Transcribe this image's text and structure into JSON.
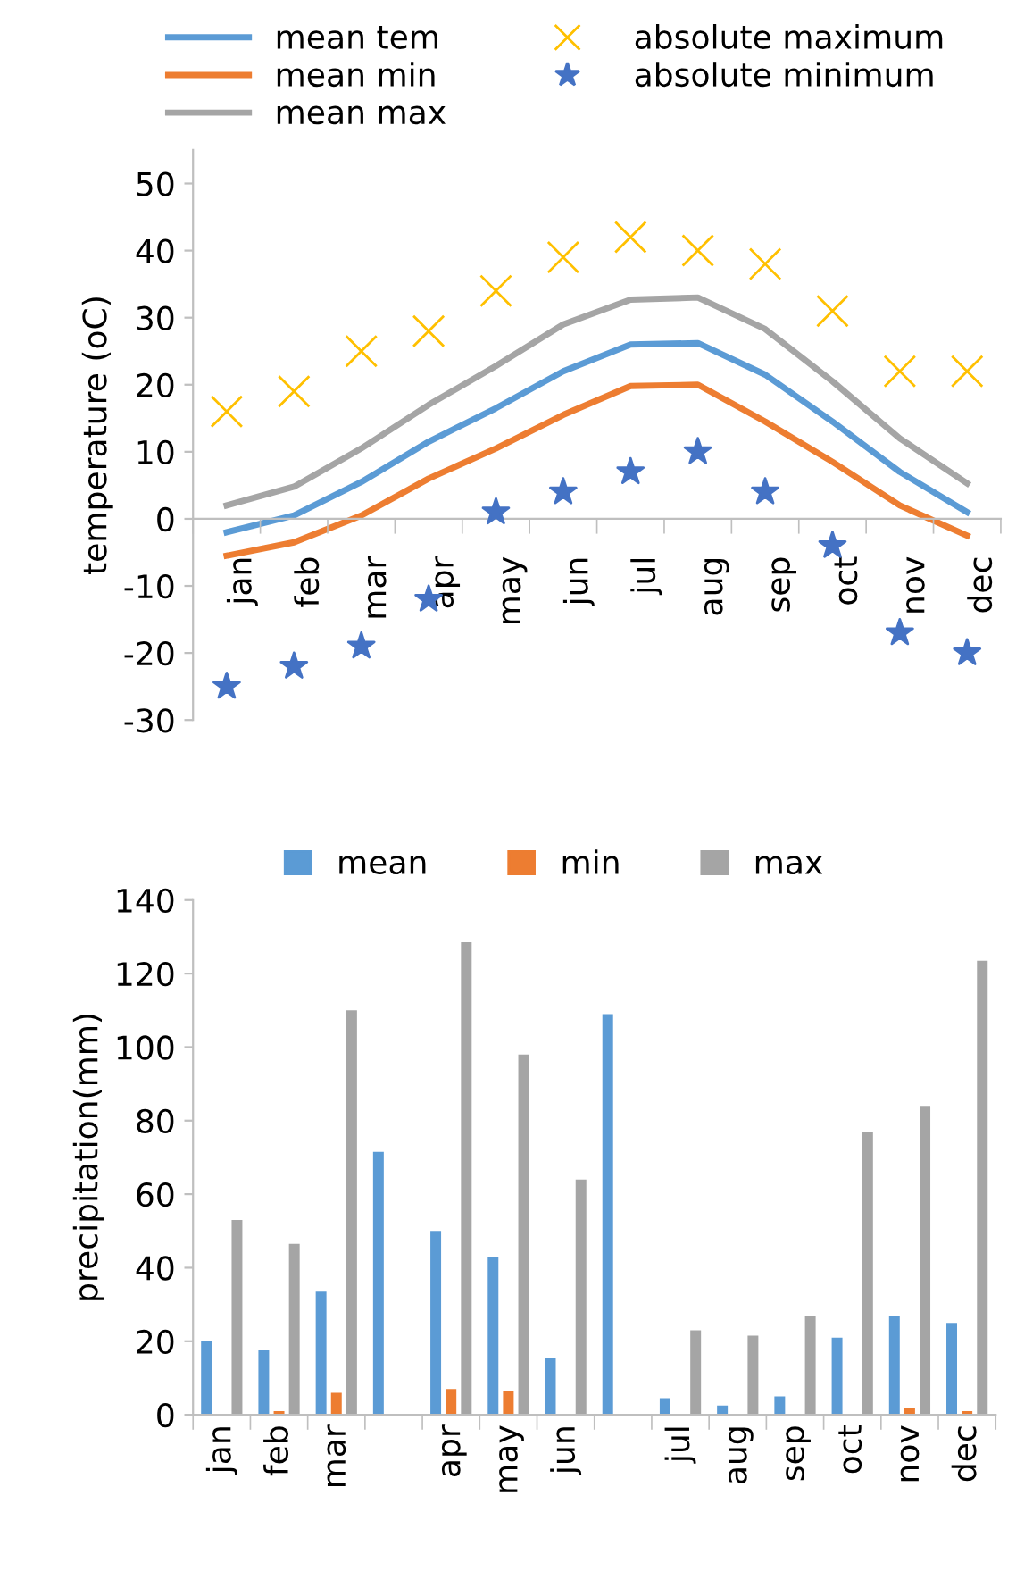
{
  "chart_data": [
    {
      "type": "line",
      "ylabel": "temperature (oC)",
      "categories": [
        "jan",
        "feb",
        "mar",
        "apr",
        "may",
        "jun",
        "jul",
        "aug",
        "sep",
        "oct",
        "nov",
        "dec"
      ],
      "ylim": [
        -30,
        55
      ],
      "yticks": [
        -30,
        -20,
        -10,
        0,
        10,
        20,
        30,
        40,
        50
      ],
      "grid": false,
      "legend": "top",
      "marker": "none",
      "line_style": "solid",
      "series": [
        {
          "name": "mean tem",
          "color": "#5b9bd5",
          "values": [
            -2,
            0.5,
            5.5,
            11.5,
            16.5,
            22,
            26,
            26.2,
            21.5,
            14.5,
            7,
            1
          ]
        },
        {
          "name": "mean min",
          "color": "#ed7d31",
          "values": [
            -5.5,
            -3.5,
            0.5,
            6,
            10.5,
            15.5,
            19.8,
            20,
            14.5,
            8.5,
            2,
            -2.5
          ]
        },
        {
          "name": "mean max",
          "color": "#a5a5a5",
          "values": [
            2,
            4.8,
            10.5,
            17,
            22.8,
            29,
            32.7,
            33,
            28.3,
            20.5,
            12,
            5.3
          ]
        },
        {
          "name": "absolute maximum",
          "type": "scatter",
          "marker": "cross",
          "color": "#ffc000",
          "values": [
            16,
            19,
            25,
            28,
            34,
            39,
            42,
            40,
            38,
            31,
            22,
            22
          ]
        },
        {
          "name": "absolute minimum",
          "type": "scatter",
          "marker": "star",
          "color": "#4472c4",
          "values": [
            -25,
            -22,
            -19,
            -12,
            1,
            4,
            7,
            10,
            4,
            -4,
            -17,
            -20
          ]
        }
      ]
    },
    {
      "type": "bar",
      "ylabel": "precipitation(mm)",
      "categories": [
        "jan",
        "feb",
        "mar",
        null,
        "apr",
        "may",
        "jun",
        null,
        "jul",
        "aug",
        "sep",
        "oct",
        "nov",
        "dec"
      ],
      "ylim": [
        0,
        140
      ],
      "yticks": [
        0,
        20,
        40,
        60,
        80,
        100,
        120,
        140
      ],
      "grid": false,
      "legend": "top",
      "series": [
        {
          "name": "mean",
          "color": "#5b9bd5",
          "values": [
            20,
            17.5,
            33.5,
            71.5,
            50,
            43,
            15.5,
            109,
            4.5,
            2.5,
            5,
            21,
            27,
            25
          ]
        },
        {
          "name": "min",
          "color": "#ed7d31",
          "values": [
            0,
            1,
            6,
            null,
            7,
            6.5,
            0,
            null,
            0,
            0,
            0,
            0,
            2,
            1
          ]
        },
        {
          "name": "max",
          "color": "#a5a5a5",
          "values": [
            53,
            46.5,
            110,
            null,
            128.5,
            98,
            64,
            null,
            23,
            21.5,
            27,
            77,
            84,
            123.5
          ]
        }
      ]
    }
  ]
}
